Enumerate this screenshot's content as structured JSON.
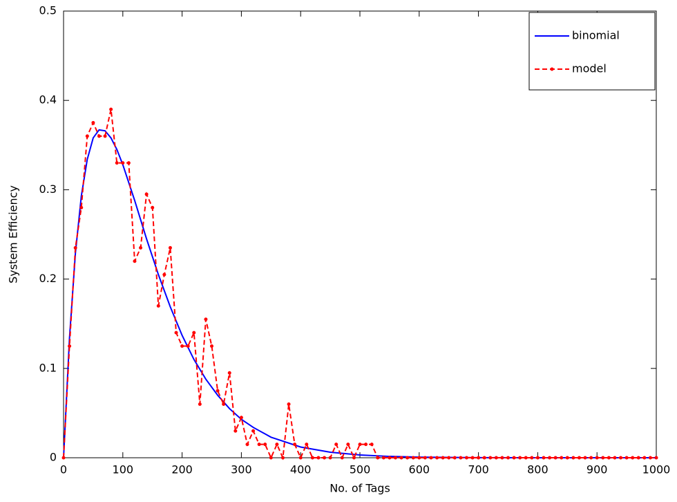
{
  "chart_data": {
    "type": "line",
    "xlabel": "No. of Tags",
    "ylabel": "System Efficiency",
    "xlim": [
      0,
      1000
    ],
    "ylim": [
      0,
      0.5
    ],
    "xticks": [
      0,
      100,
      200,
      300,
      400,
      500,
      600,
      700,
      800,
      900,
      1000
    ],
    "yticks": [
      0,
      0.1,
      0.2,
      0.3,
      0.4,
      0.5
    ],
    "grid": false,
    "legend": "top-right",
    "series": [
      {
        "name": "binomial",
        "color": "#0000ff",
        "style": "solid",
        "x": [
          0,
          10,
          20,
          30,
          40,
          50,
          60,
          70,
          80,
          90,
          100,
          120,
          140,
          160,
          180,
          200,
          220,
          240,
          260,
          280,
          300,
          320,
          350,
          400,
          450,
          500,
          550,
          600,
          700,
          800,
          900,
          1000
        ],
        "values": [
          0,
          0.134,
          0.229,
          0.293,
          0.334,
          0.358,
          0.367,
          0.366,
          0.358,
          0.345,
          0.328,
          0.288,
          0.245,
          0.205,
          0.169,
          0.137,
          0.11,
          0.088,
          0.07,
          0.055,
          0.043,
          0.034,
          0.023,
          0.012,
          0.0062,
          0.0031,
          0.0015,
          0.0007,
          0.0001,
          0,
          0,
          0
        ]
      },
      {
        "name": "model",
        "color": "#ff0000",
        "style": "dashed",
        "x": [
          0,
          10,
          20,
          30,
          40,
          50,
          60,
          70,
          80,
          90,
          100,
          110,
          120,
          130,
          140,
          150,
          160,
          170,
          180,
          190,
          200,
          210,
          220,
          230,
          240,
          250,
          260,
          270,
          280,
          290,
          300,
          310,
          320,
          330,
          340,
          350,
          360,
          370,
          380,
          390,
          400,
          410,
          420,
          430,
          440,
          450,
          460,
          470,
          480,
          490,
          500,
          510,
          520,
          530,
          540,
          550,
          560,
          570,
          580,
          590,
          600,
          610,
          620,
          630,
          640,
          650,
          660,
          670,
          680,
          690,
          700,
          710,
          720,
          730,
          740,
          750,
          760,
          770,
          780,
          790,
          800,
          810,
          820,
          830,
          840,
          850,
          860,
          870,
          880,
          890,
          900,
          910,
          920,
          930,
          940,
          950,
          960,
          970,
          980,
          990,
          1000
        ],
        "values": [
          0,
          0.125,
          0.235,
          0.28,
          0.36,
          0.375,
          0.36,
          0.36,
          0.39,
          0.33,
          0.33,
          0.33,
          0.22,
          0.235,
          0.295,
          0.28,
          0.17,
          0.205,
          0.235,
          0.14,
          0.125,
          0.125,
          0.14,
          0.06,
          0.155,
          0.125,
          0.075,
          0.06,
          0.095,
          0.03,
          0.045,
          0.015,
          0.03,
          0.015,
          0.015,
          0,
          0.015,
          0,
          0.06,
          0.015,
          0,
          0.015,
          0,
          0,
          0,
          0,
          0.015,
          0,
          0.015,
          0,
          0.015,
          0.015,
          0.015,
          0,
          0,
          0,
          0,
          0,
          0,
          0,
          0,
          0,
          0,
          0,
          0,
          0,
          0,
          0,
          0,
          0,
          0,
          0,
          0,
          0,
          0,
          0,
          0,
          0,
          0,
          0,
          0,
          0,
          0,
          0,
          0,
          0,
          0,
          0,
          0,
          0,
          0,
          0,
          0,
          0,
          0,
          0,
          0,
          0,
          0,
          0,
          0
        ]
      }
    ]
  }
}
